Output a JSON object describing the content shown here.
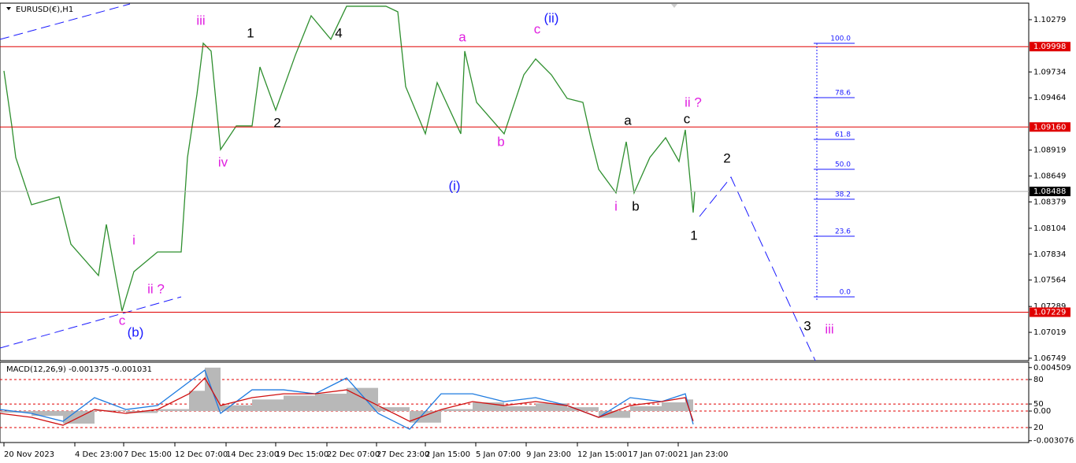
{
  "chart_data": [
    {
      "type": "line",
      "title": "EURUSD(€),H1",
      "color": "#2f8f2f",
      "x": [
        5,
        15,
        20,
        40,
        75,
        90,
        125,
        135,
        155,
        170,
        200,
        230,
        238,
        250,
        258,
        268,
        280,
        300,
        320,
        330,
        350,
        375,
        395,
        420,
        440,
        490,
        505,
        515,
        540,
        555,
        585,
        590,
        605,
        640,
        665,
        680,
        700,
        720,
        740,
        750,
        760,
        782,
        795,
        805,
        825,
        845,
        862,
        870,
        880,
        882
      ],
      "values": [
        1.09745,
        1.09171,
        1.08842,
        1.0835,
        1.08432,
        1.07939,
        1.07611,
        1.08144,
        1.07241,
        1.07652,
        1.07857,
        1.07857,
        1.08842,
        1.09499,
        1.10033,
        1.09951,
        1.08924,
        1.09171,
        1.09171,
        1.09786,
        1.09335,
        1.0991,
        1.1032,
        1.10074,
        1.10419,
        1.10419,
        1.10361,
        1.09581,
        1.09089,
        1.09622,
        1.09089,
        1.09951,
        1.09417,
        1.09089,
        1.09704,
        1.09869,
        1.09704,
        1.09458,
        1.09417,
        1.09048,
        1.08719,
        1.08473,
        1.09006,
        1.08473,
        1.08842,
        1.09048,
        1.08801,
        1.0913,
        1.08268,
        1.08488
      ],
      "xlim": [
        0,
        1306
      ],
      "xticks": [
        {
          "value": 5,
          "label": "20 Nov 2023"
        },
        {
          "value": 95,
          "label": "4 Dec 23:00"
        },
        {
          "value": 157,
          "label": "7 Dec 15:00"
        },
        {
          "value": 222,
          "label": "12 Dec 07:00"
        },
        {
          "value": 287,
          "label": "14 Dec 23:00"
        },
        {
          "value": 350,
          "label": "19 Dec 15:00"
        },
        {
          "value": 415,
          "label": "22 Dec 07:00"
        },
        {
          "value": 478,
          "label": "27 Dec 23:00"
        },
        {
          "value": 540,
          "label": "2 Jan 15:00"
        },
        {
          "value": 604,
          "label": "5 Jan 07:00"
        },
        {
          "value": 668,
          "label": "9 Jan 23:00"
        },
        {
          "value": 733,
          "label": "12 Jan 15:00"
        },
        {
          "value": 797,
          "label": "17 Jan 07:00"
        },
        {
          "value": 861,
          "label": "21 Jan 23:00"
        }
      ],
      "ylim": [
        1.06724,
        1.10443
      ],
      "yticks": [
        1.10279,
        1.09734,
        1.09464,
        1.08919,
        1.08649,
        1.08379,
        1.08104,
        1.07834,
        1.07564,
        1.07289,
        1.07019,
        1.06749
      ],
      "hlines": [
        {
          "value": 1.09998,
          "label": "1.09998",
          "color": "#e00000"
        },
        {
          "value": 1.0916,
          "label": "1.09160",
          "color": "#e00000"
        },
        {
          "value": 1.07229,
          "label": "1.07229",
          "color": "#e00000"
        },
        {
          "value": 1.08488,
          "label": "1.08488",
          "color": "#b0b0b0"
        }
      ],
      "fib_levels": [
        {
          "value": 1.10033,
          "label": "100.0"
        },
        {
          "value": 1.09466,
          "label": "78.6"
        },
        {
          "value": 1.09031,
          "label": "61.8"
        },
        {
          "value": 1.08719,
          "label": "50.0"
        },
        {
          "value": 1.08407,
          "label": "38.2"
        },
        {
          "value": 1.08021,
          "label": "23.6"
        },
        {
          "value": 1.07389,
          "label": "0.0"
        }
      ],
      "annotations": [
        {
          "text": "iii",
          "x": 255,
          "y": 1.10263,
          "color": "#e020e0"
        },
        {
          "text": "1",
          "x": 318,
          "y": 1.10131,
          "color": "#000000"
        },
        {
          "text": "4",
          "x": 430,
          "y": 1.10131,
          "color": "#000000"
        },
        {
          "text": "a",
          "x": 587,
          "y": 1.1009,
          "color": "#e020e0"
        },
        {
          "text": "c",
          "x": 682,
          "y": 1.10172,
          "color": "#e020e0"
        },
        {
          "text": "(ii)",
          "x": 700,
          "y": 1.10287,
          "color": "#1a1aff"
        },
        {
          "text": "ii ?",
          "x": 880,
          "y": 1.09409,
          "color": "#e020e0"
        },
        {
          "text": "a",
          "x": 797,
          "y": 1.0922,
          "color": "#000000"
        },
        {
          "text": "c",
          "x": 872,
          "y": 1.09236,
          "color": "#000000"
        },
        {
          "text": "2",
          "x": 352,
          "y": 1.09195,
          "color": "#000000"
        },
        {
          "text": "iv",
          "x": 283,
          "y": 1.08785,
          "color": "#e020e0"
        },
        {
          "text": "b",
          "x": 636,
          "y": 1.08998,
          "color": "#e020e0"
        },
        {
          "text": "(i)",
          "x": 577,
          "y": 1.08538,
          "color": "#1a1aff"
        },
        {
          "text": "2",
          "x": 923,
          "y": 1.08826,
          "color": "#000000"
        },
        {
          "text": "i",
          "x": 782,
          "y": 1.08325,
          "color": "#e020e0"
        },
        {
          "text": "b",
          "x": 807,
          "y": 1.08325,
          "color": "#000000"
        },
        {
          "text": "1",
          "x": 881,
          "y": 1.08021,
          "color": "#000000"
        },
        {
          "text": "i",
          "x": 170,
          "y": 1.07972,
          "color": "#e020e0"
        },
        {
          "text": "ii ?",
          "x": 198,
          "y": 1.07463,
          "color": "#e020e0"
        },
        {
          "text": "c",
          "x": 155,
          "y": 1.07135,
          "color": "#e020e0"
        },
        {
          "text": "(b)",
          "x": 172,
          "y": 1.07011,
          "color": "#1a1aff"
        },
        {
          "text": "3",
          "x": 1025,
          "y": 1.07077,
          "color": "#000000"
        },
        {
          "text": "iii",
          "x": 1053,
          "y": 1.07044,
          "color": "#e020e0"
        }
      ]
    },
    {
      "type": "line",
      "title": "MACD(12,26,9) -0.001375 -0.001031",
      "x": [
        0,
        40,
        80,
        120,
        160,
        200,
        240,
        260,
        280,
        320,
        360,
        400,
        440,
        480,
        520,
        560,
        600,
        640,
        680,
        720,
        760,
        800,
        840,
        870,
        880
      ],
      "series": [
        {
          "color": "#b8b8b8",
          "style": "bars",
          "values": [
            -0.00016,
            -0.0005,
            -0.0013,
            0.0001,
            -0.0002,
            0.0002,
            0.0021,
            0.0045,
            0.0006,
            0.0012,
            0.0016,
            0.0018,
            0.0024,
            0.0004,
            -0.0012,
            0.0002,
            0.0009,
            0.0005,
            0.0008,
            0.0004,
            -0.0007,
            0.0005,
            0.0009,
            0.0012,
            -0.0001
          ]
        },
        {
          "color": "#1e7be0",
          "values": [
            0.00016,
            -0.00024,
            -0.00106,
            0.00139,
            0.00016,
            0.00057,
            0.00302,
            0.00424,
            -0.00024,
            0.0022,
            0.0022,
            0.00179,
            0.00343,
            -0.00024,
            -0.00188,
            0.00179,
            0.00179,
            0.00098,
            0.00139,
            0.00057,
            -0.00065,
            0.00139,
            0.00098,
            0.00179,
            -0.001375
          ]
        },
        {
          "color": "#d01010",
          "values": [
            -0.00024,
            -0.00065,
            -0.00147,
            0.00016,
            -0.00024,
            0.00016,
            0.00179,
            0.00343,
            0.00057,
            0.00139,
            0.00179,
            0.00179,
            0.0022,
            0.00057,
            -0.00106,
            0.00016,
            0.00098,
            0.00057,
            0.00098,
            0.00057,
            -0.00065,
            0.00057,
            0.00098,
            0.00139,
            -0.001031
          ]
        }
      ],
      "ylim": [
        -0.00326,
        0.00506
      ],
      "yticks": [
        0.004509,
        {
          "value": 0.00327,
          "label": "80"
        },
        {
          "value": 0.00073,
          "label": "50"
        },
        {
          "value": 0,
          "label": "0.00"
        },
        {
          "value": -0.00171,
          "label": "20"
        },
        -0.003076
      ]
    }
  ]
}
